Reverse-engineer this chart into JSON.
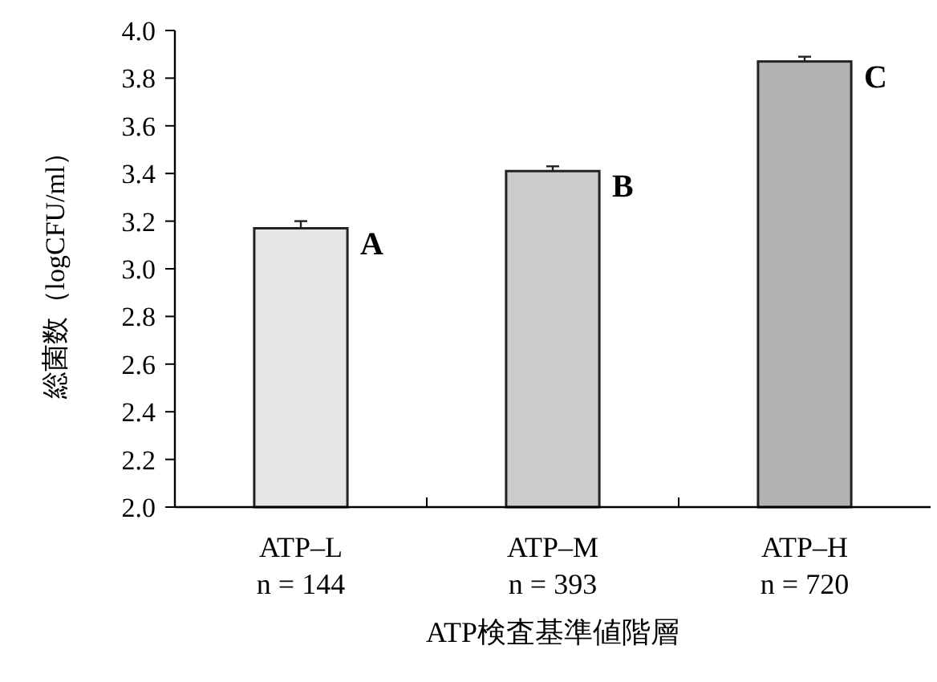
{
  "chart_data": {
    "type": "bar",
    "xlabel": "ATP検査基準値階層",
    "ylabel": "総菌数（logCFU/ml）",
    "categories": [
      "ATP–L\nn = 144",
      "ATP–M\nn = 393",
      "ATP–H\nn = 720"
    ],
    "values": [
      3.17,
      3.41,
      3.87
    ],
    "errors": [
      0.03,
      0.02,
      0.02
    ],
    "colors": [
      "#e5e5e5",
      "#cccccc",
      "#b2b2b2"
    ],
    "ylim": [
      2.0,
      4.0
    ],
    "yticks": [
      {
        "value": 2.0,
        "label": "2.0"
      },
      {
        "value": 2.2,
        "label": "2.2"
      },
      {
        "value": 2.4,
        "label": "2.4"
      },
      {
        "value": 2.6,
        "label": "2.6"
      },
      {
        "value": 2.8,
        "label": "2.8"
      },
      {
        "value": 3.0,
        "label": "3.0"
      },
      {
        "value": 3.2,
        "label": "3.2"
      },
      {
        "value": 3.4,
        "label": "3.4"
      },
      {
        "value": 3.6,
        "label": "3.6"
      },
      {
        "value": 3.8,
        "label": "3.8"
      },
      {
        "value": 4.0,
        "label": "4.0"
      }
    ],
    "annotations": [
      {
        "text": "A",
        "x": "ATP–L\nn = 144",
        "y": 3.17
      },
      {
        "text": "B",
        "x": "ATP–M\nn = 393",
        "y": 3.41
      },
      {
        "text": "C",
        "x": "ATP–H\nn = 720",
        "y": 3.87
      }
    ]
  }
}
